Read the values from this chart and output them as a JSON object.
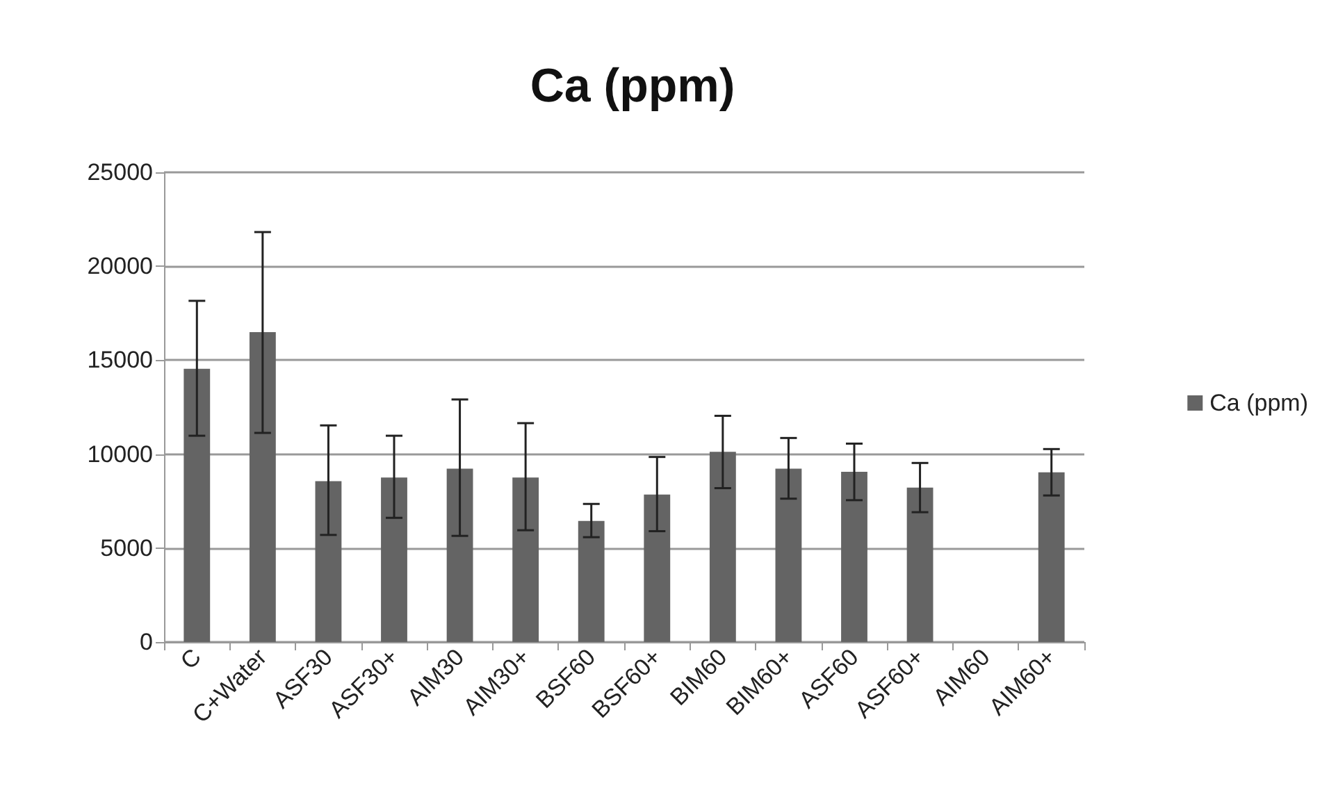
{
  "chart_data": {
    "type": "bar",
    "title": "Ca (ppm)",
    "categories": [
      "C",
      "C+Water",
      "ASF30",
      "ASF30+",
      "AIM30",
      "AIM30+",
      "BSF60",
      "BSF60+",
      "BIM60",
      "BIM60+",
      "ASF60",
      "ASF60+",
      "AIM60",
      "AIM60+"
    ],
    "series": [
      {
        "name": "Ca (ppm)",
        "color": "#646464",
        "values": [
          14540,
          16490,
          8560,
          8760,
          9230,
          8760,
          6440,
          7850,
          10120,
          9230,
          9060,
          8220,
          null,
          9030
        ],
        "errors": [
          [
            10980,
            18160
          ],
          [
            11130,
            21820
          ],
          [
            5700,
            11530
          ],
          [
            6610,
            10980
          ],
          [
            5650,
            12910
          ],
          [
            5950,
            11650
          ],
          [
            5580,
            7350
          ],
          [
            5900,
            9850
          ],
          [
            8190,
            12040
          ],
          [
            7630,
            10860
          ],
          [
            7550,
            10560
          ],
          [
            6910,
            9530
          ],
          null,
          [
            7800,
            10270
          ]
        ]
      }
    ],
    "ylim": [
      0,
      25000
    ],
    "yticks": [
      0,
      5000,
      10000,
      15000,
      20000,
      25000
    ],
    "grid": "y",
    "legend": "right"
  }
}
